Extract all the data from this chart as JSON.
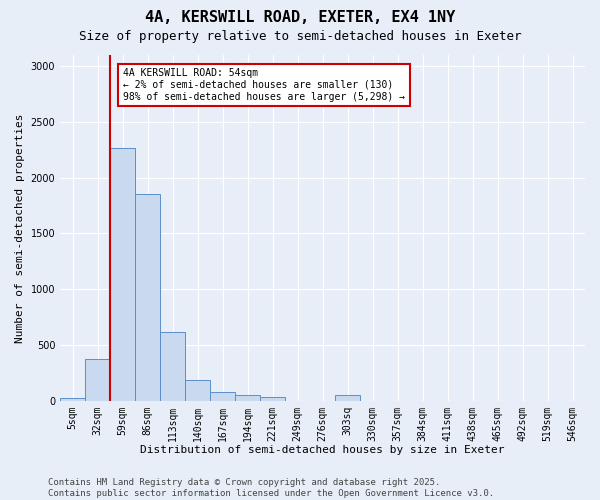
{
  "title": "4A, KERSWILL ROAD, EXETER, EX4 1NY",
  "subtitle": "Size of property relative to semi-detached houses in Exeter",
  "xlabel": "Distribution of semi-detached houses by size in Exeter",
  "ylabel": "Number of semi-detached properties",
  "categories": [
    "5sqm",
    "32sqm",
    "59sqm",
    "86sqm",
    "113sqm",
    "140sqm",
    "167sqm",
    "194sqm",
    "221sqm",
    "249sqm",
    "276sqm",
    "303sq",
    "330sqm",
    "357sqm",
    "384sqm",
    "411sqm",
    "438sqm",
    "465sqm",
    "492sqm",
    "519sqm",
    "546sqm"
  ],
  "values": [
    20,
    370,
    2270,
    1850,
    620,
    190,
    75,
    55,
    30,
    0,
    0,
    50,
    0,
    0,
    0,
    0,
    0,
    0,
    0,
    0,
    0
  ],
  "bar_color": "#c9d9f0",
  "bar_edge_color": "#5b8fc9",
  "vline_color": "#cc0000",
  "vline_pos": 1.5,
  "annotation_text": "4A KERSWILL ROAD: 54sqm\n← 2% of semi-detached houses are smaller (130)\n98% of semi-detached houses are larger (5,298) →",
  "annotation_box_color": "#ffffff",
  "annotation_box_edge": "#cc0000",
  "ylim": [
    0,
    3100
  ],
  "yticks": [
    0,
    500,
    1000,
    1500,
    2000,
    2500,
    3000
  ],
  "footer": "Contains HM Land Registry data © Crown copyright and database right 2025.\nContains public sector information licensed under the Open Government Licence v3.0.",
  "background_color": "#e8eef8",
  "grid_color": "#ffffff",
  "title_fontsize": 11,
  "subtitle_fontsize": 9,
  "label_fontsize": 8,
  "tick_fontsize": 7,
  "footer_fontsize": 6.5
}
